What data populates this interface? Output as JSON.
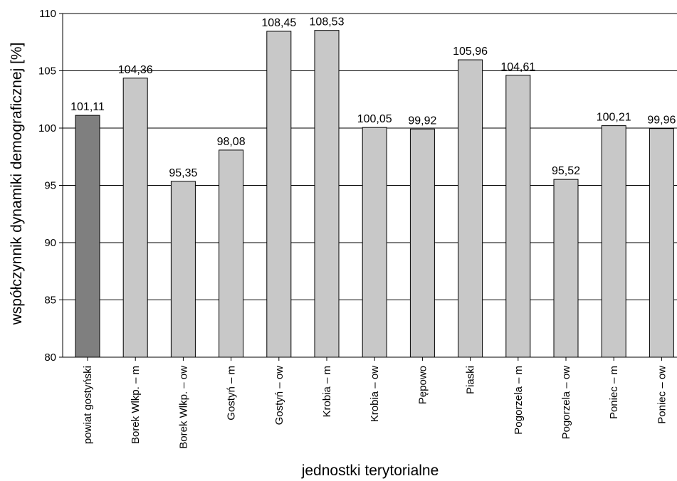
{
  "chart_data": {
    "type": "bar",
    "title": "",
    "xlabel": "jednostki terytorialne",
    "ylabel": "współczynnik dynamiki demograficznej  [%]",
    "ylim": [
      80,
      110
    ],
    "yticks": [
      80,
      85,
      90,
      95,
      100,
      105,
      110
    ],
    "grid": true,
    "categories": [
      "powiat gostyński",
      "Borek Wlkp. – m",
      "Borek Wlkp. – ow",
      "Gostyń – m",
      "Gostyń – ow",
      "Krobia – m",
      "Krobia – ow",
      "Pępowo",
      "Piaski",
      "Pogorzela – m",
      "Pogorzela – ow",
      "Poniec – m",
      "Poniec – ow"
    ],
    "values": [
      101.11,
      104.36,
      95.35,
      98.08,
      108.45,
      108.53,
      100.05,
      99.92,
      105.96,
      104.61,
      95.52,
      100.21,
      99.96
    ],
    "value_labels": [
      "101,11",
      "104,36",
      "95,35",
      "98,08",
      "108,45",
      "108,53",
      "100,05",
      "99,92",
      "105,96",
      "104,61",
      "95,52",
      "100,21",
      "99,96"
    ],
    "colors": {
      "highlight": "#7f7f7f",
      "bar": "#c8c8c8",
      "edge": "#000000"
    },
    "highlight_index": 0
  }
}
